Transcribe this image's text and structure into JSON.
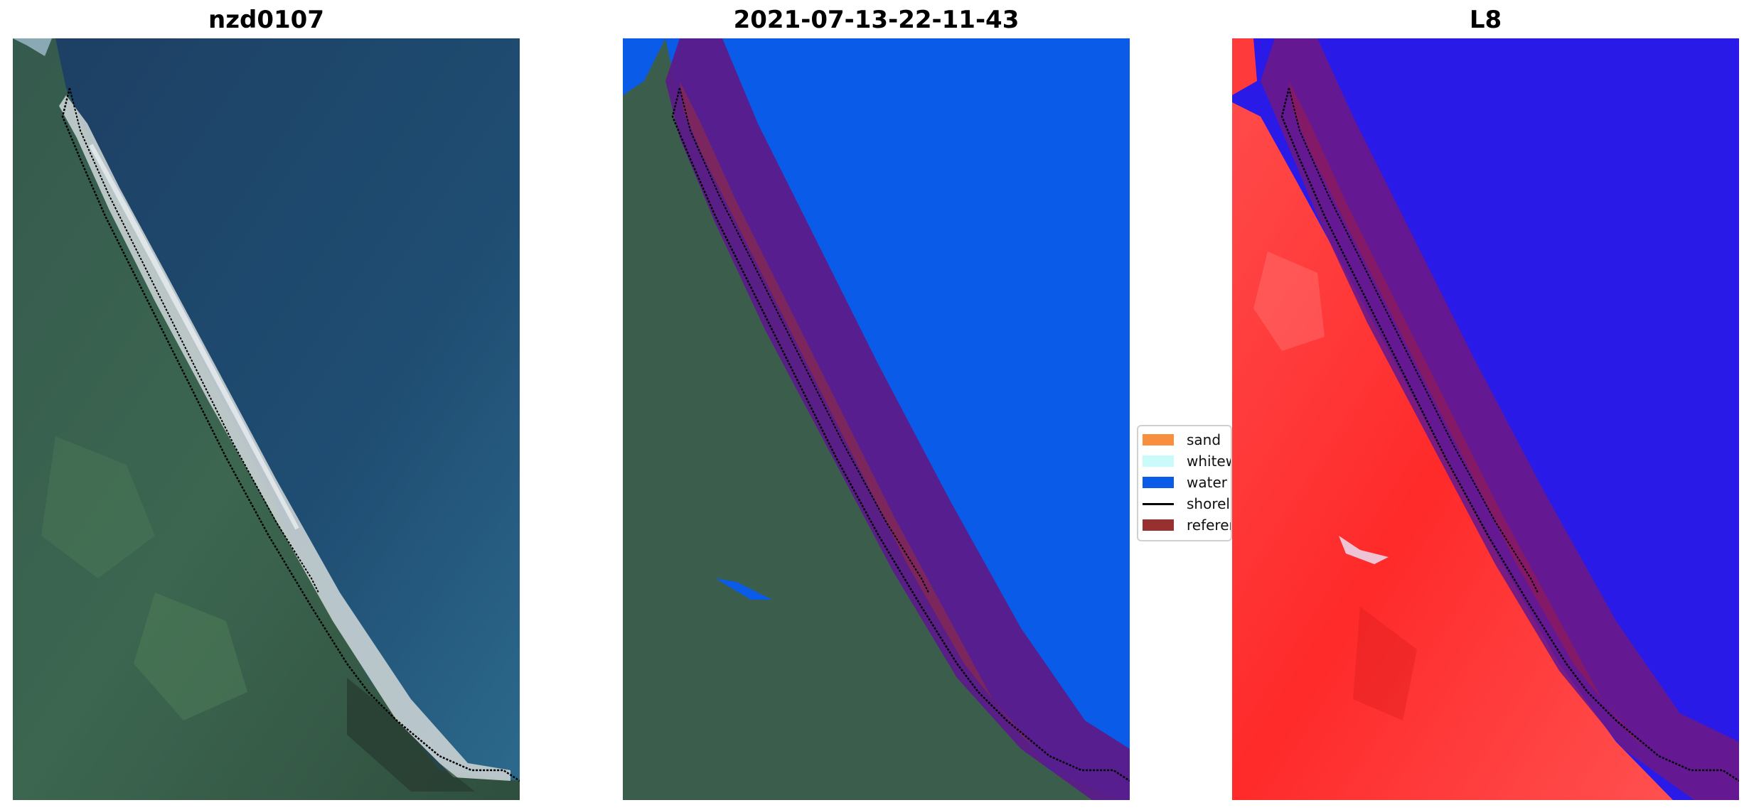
{
  "panels": [
    {
      "title": "nzd0107"
    },
    {
      "title": "2021-07-13-22-11-43"
    },
    {
      "title": "L8"
    }
  ],
  "legend": {
    "items": [
      {
        "label": "sand",
        "color": "#f78f3e",
        "type": "patch"
      },
      {
        "label": "whitewater",
        "color": "#c9fbfb",
        "type": "patch"
      },
      {
        "label": "water",
        "color": "#0a5ce8",
        "type": "patch"
      },
      {
        "label": "shoreline",
        "color": "#000000",
        "type": "line"
      },
      {
        "label": "reference",
        "color": "#97302e",
        "type": "patch"
      }
    ]
  },
  "colors": {
    "sea": "#1f4a6a",
    "land": "#3b5e4c",
    "classified_water": "#0a5ce8",
    "buffer": "#5c1a8a",
    "mndwi_land": "#ff3030",
    "mndwi_water": "#2a1ae8"
  }
}
